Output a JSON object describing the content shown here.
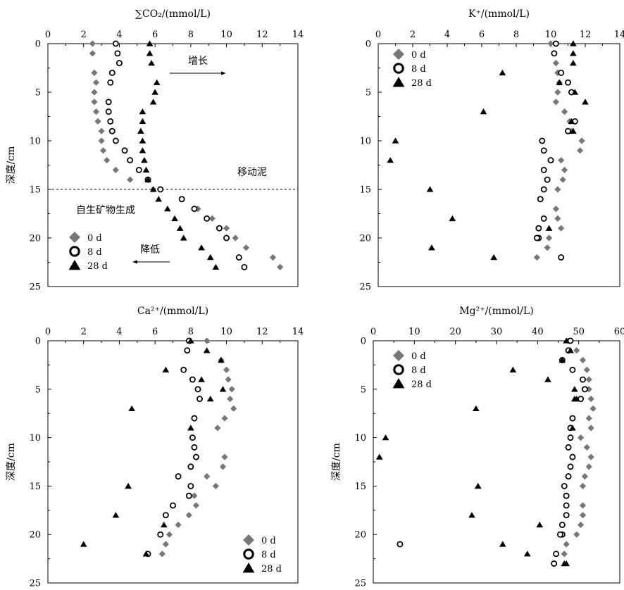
{
  "colors": {
    "series_0d": "#777777",
    "series_8d": "#000000",
    "series_28d": "#000000",
    "axis": "#000000"
  },
  "chart_data": [
    {
      "type": "scatter",
      "title": "∑CO₂/(mmol/L)",
      "xlabel": "∑CO₂/(mmol/L)",
      "ylabel": "深度/cm",
      "xlim": [
        0,
        14
      ],
      "ylim": [
        0,
        25
      ],
      "y_inverted": true,
      "x_axis_position": "top",
      "x_ticks": [
        "0",
        "2",
        "4",
        "6",
        "8",
        "10",
        "12",
        "14"
      ],
      "y_ticks": [
        "0",
        "5",
        "10",
        "15",
        "20",
        "25"
      ],
      "legend": "bottom-left",
      "annotations": {
        "dashed_line_depth": 15,
        "upper_label": "移动泥",
        "lower_label": "自生矿物生成",
        "increase_label": "增长",
        "decrease_label": "降低"
      },
      "series": [
        {
          "name": "0 d",
          "marker": "diamond",
          "x": [
            2.5,
            2.5,
            2.6,
            2.7,
            2.6,
            2.6,
            2.7,
            2.8,
            3.0,
            3.0,
            3.1,
            3.3,
            3.8,
            4.6,
            5.9,
            8.4,
            9.2,
            10.0,
            10.5,
            11.1,
            12.6,
            13.0
          ],
          "y": [
            0,
            1,
            3,
            4,
            5,
            6,
            7,
            8,
            9,
            10,
            11,
            12,
            13,
            14,
            15,
            17,
            18,
            19,
            20,
            21,
            22,
            23
          ]
        },
        {
          "name": "8 d",
          "marker": "circle",
          "x": [
            3.8,
            3.9,
            4.0,
            3.6,
            3.5,
            3.4,
            3.4,
            3.5,
            3.6,
            3.8,
            4.3,
            4.6,
            5.1,
            5.6,
            6.3,
            7.5,
            8.2,
            8.9,
            9.6,
            10.0,
            10.7,
            11.0
          ],
          "y": [
            0,
            1,
            2,
            3,
            4,
            6,
            7,
            8,
            9,
            10,
            11,
            12,
            13,
            14,
            15,
            16,
            17,
            18,
            19,
            20,
            22,
            23
          ]
        },
        {
          "name": "28 d",
          "marker": "triangle",
          "x": [
            5.7,
            5.7,
            5.8,
            6.1,
            6.0,
            5.9,
            5.3,
            5.3,
            5.2,
            5.3,
            5.3,
            5.4,
            5.5,
            5.6,
            5.9,
            6.2,
            6.7,
            7.1,
            7.4,
            7.6,
            8.6,
            9.1,
            9.4
          ],
          "y": [
            0,
            1,
            2,
            4,
            5,
            6,
            7,
            8,
            9,
            10,
            11,
            12,
            13,
            14,
            15,
            16,
            17,
            18,
            19,
            20,
            21,
            22,
            23
          ]
        }
      ]
    },
    {
      "type": "scatter",
      "title": "K⁺/(mmol/L)",
      "xlabel": "K⁺/(mmol/L)",
      "ylabel": "",
      "xlim": [
        0,
        14
      ],
      "ylim": [
        0,
        25
      ],
      "y_inverted": true,
      "x_axis_position": "top",
      "x_ticks": [
        "0",
        "2",
        "4",
        "6",
        "8",
        "10",
        "12",
        "14"
      ],
      "y_ticks": [
        "0",
        "5",
        "10",
        "15",
        "20",
        "25"
      ],
      "legend": "top-left",
      "series": [
        {
          "name": "0 d",
          "marker": "diamond",
          "x": [
            10.0,
            10.2,
            10.3,
            10.4,
            10.5,
            10.4,
            10.3,
            10.8,
            11.1,
            11.2,
            11.8,
            11.7,
            10.6,
            10.8,
            10.7,
            10.4,
            10.3,
            10.4,
            10.6,
            9.9,
            9.8,
            9.2
          ],
          "y": [
            0,
            1,
            2,
            3,
            4,
            5,
            6,
            7,
            8,
            9,
            10,
            11,
            12,
            13,
            14,
            15,
            17,
            18,
            19,
            20,
            21,
            22
          ]
        },
        {
          "name": "8 d",
          "marker": "circle",
          "x": [
            10.3,
            10.2,
            10.6,
            11.0,
            11.2,
            11.4,
            11.0,
            9.5,
            9.6,
            10.0,
            9.6,
            9.8,
            9.6,
            9.4,
            9.6,
            9.3,
            9.3,
            9.2,
            10.6
          ],
          "y": [
            0,
            1,
            3,
            4,
            5,
            8,
            9,
            10,
            11,
            12,
            13,
            14,
            15,
            16,
            18,
            19,
            20,
            20,
            22
          ]
        },
        {
          "name": "28 d",
          "marker": "triangle",
          "x": [
            11.3,
            11.3,
            11.3,
            7.2,
            10.5,
            11.4,
            12.0,
            6.1,
            11.2,
            11.3,
            1.0,
            0.7,
            3.0,
            4.3,
            3.1,
            6.7,
            9.9
          ],
          "y": [
            0,
            1,
            2,
            3,
            4,
            5,
            6,
            7,
            8,
            9,
            10,
            12,
            15,
            18,
            21,
            22,
            19
          ]
        }
      ]
    },
    {
      "type": "scatter",
      "title": "Ca²⁺/(mmol/L)",
      "xlabel": "Ca²⁺/(mmol/L)",
      "ylabel": "深度/cm",
      "xlim": [
        0,
        14
      ],
      "ylim": [
        0,
        25
      ],
      "y_inverted": true,
      "x_axis_position": "top",
      "x_ticks": [
        "0",
        "2",
        "4",
        "6",
        "8",
        "10",
        "12",
        "14"
      ],
      "y_ticks": [
        "0",
        "5",
        "10",
        "15",
        "20",
        "25"
      ],
      "legend": "bottom-right",
      "series": [
        {
          "name": "0 d",
          "marker": "diamond",
          "x": [
            8.9,
            9.7,
            10.0,
            10.1,
            10.3,
            10.2,
            10.4,
            9.9,
            9.5,
            9.9,
            9.8,
            8.9,
            9.4,
            8.2,
            8.3,
            7.9,
            7.3,
            6.8,
            6.6,
            6.4
          ],
          "y": [
            0,
            2,
            3,
            4,
            5,
            6,
            7,
            8,
            9,
            12,
            13,
            14,
            15,
            16,
            17,
            18,
            19,
            20,
            21,
            22
          ]
        },
        {
          "name": "8 d",
          "marker": "circle",
          "x": [
            7.9,
            7.8,
            7.6,
            8.1,
            8.4,
            8.5,
            8.2,
            8.1,
            8.2,
            8.3,
            8.0,
            7.3,
            8.0,
            7.9,
            7.0,
            6.6,
            6.3,
            5.6
          ],
          "y": [
            0,
            1,
            3,
            4,
            5,
            6,
            8,
            10,
            11,
            12,
            13,
            14,
            15,
            16,
            17,
            18,
            20,
            22
          ]
        },
        {
          "name": "28 d",
          "marker": "triangle",
          "x": [
            8.0,
            8.9,
            9.7,
            6.6,
            8.6,
            9.8,
            9.1,
            4.7,
            8.0,
            4.5,
            3.8,
            6.5,
            2.0,
            5.5
          ],
          "y": [
            0,
            1,
            2,
            3,
            4,
            5,
            6,
            7,
            9,
            15,
            18,
            19,
            21,
            22
          ]
        }
      ]
    },
    {
      "type": "scatter",
      "title": "Mg²⁺/(mmol/L)",
      "xlabel": "Mg²⁺/(mmol/L)",
      "ylabel": "深度/cm",
      "xlim": [
        0,
        60
      ],
      "ylim": [
        0,
        25
      ],
      "y_inverted": true,
      "x_axis_position": "top",
      "x_ticks": [
        "0",
        "10",
        "20",
        "30",
        "40",
        "50",
        "60"
      ],
      "y_ticks": [
        "0",
        "5",
        "10",
        "15",
        "20",
        "25"
      ],
      "legend": "top-left",
      "series": [
        {
          "name": "0 d",
          "marker": "diamond",
          "x": [
            47.5,
            49.5,
            51.0,
            52.0,
            52.5,
            52.5,
            53.0,
            53.5,
            52.5,
            53.0,
            50.5,
            52.0,
            53.0,
            52.5,
            51.5,
            51.0,
            51.0,
            51.0,
            50.5,
            49.5,
            47.0,
            46.5
          ],
          "y": [
            0,
            1,
            2,
            3,
            4,
            5,
            6,
            7,
            8,
            9,
            10,
            11,
            12,
            13,
            14,
            15,
            17,
            18,
            19,
            20,
            21,
            22
          ]
        },
        {
          "name": "8 d",
          "marker": "circle",
          "x": [
            48.0,
            47.5,
            46.0,
            48.5,
            51.0,
            51.5,
            50.5,
            48.5,
            48.0,
            48.0,
            47.5,
            48.5,
            48.0,
            47.5,
            46.5,
            47.0,
            47.0,
            47.0,
            46.0,
            46.0,
            45.5,
            6.5,
            44.5,
            44.0
          ],
          "y": [
            0,
            1,
            2,
            3,
            4,
            5,
            6,
            8,
            9,
            10,
            11,
            12,
            13,
            14,
            15,
            16,
            17,
            18,
            19,
            20,
            20,
            21,
            22,
            23
          ]
        },
        {
          "name": "28 d",
          "marker": "triangle",
          "x": [
            47.0,
            48.0,
            46.0,
            34.0,
            42.5,
            49.0,
            49.0,
            49.5,
            25.0,
            48.5,
            3.0,
            1.5,
            25.5,
            24.0,
            40.5,
            31.5,
            37.5,
            46.5,
            47.0
          ],
          "y": [
            0,
            1,
            2,
            3,
            4,
            5,
            6,
            6,
            7,
            9,
            10,
            12,
            15,
            18,
            19,
            21,
            22,
            23,
            23
          ]
        }
      ]
    }
  ]
}
